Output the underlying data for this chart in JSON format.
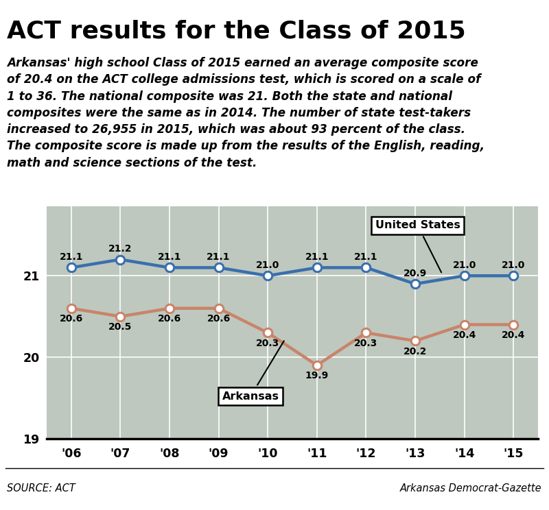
{
  "title": "ACT results for the Class of 2015",
  "subtitle": "Arkansas' high school Class of 2015 earned an average composite score\nof 20.4 on the ACT college admissions test, which is scored on a scale of\n1 to 36. The national composite was 21. Both the state and national\ncomposites were the same as in 2014. The number of state test-takers\nincreased to 26,955 in 2015, which was about 93 percent of the class.\nThe composite score is made up from the results of the English, reading,\nmath and science sections of the test.",
  "years": [
    "'06",
    "'07",
    "'08",
    "'09",
    "'10",
    "'11",
    "'12",
    "'13",
    "'14",
    "'15"
  ],
  "us_scores": [
    21.1,
    21.2,
    21.1,
    21.1,
    21.0,
    21.1,
    21.1,
    20.9,
    21.0,
    21.0
  ],
  "ar_scores": [
    20.6,
    20.5,
    20.6,
    20.6,
    20.3,
    19.9,
    20.3,
    20.2,
    20.4,
    20.4
  ],
  "us_color": "#3a6fad",
  "ar_color": "#c9846a",
  "plot_bg_color": "#bec8be",
  "ylim_min": 19.0,
  "ylim_max": 21.85,
  "yticks": [
    19,
    20,
    21
  ],
  "source_text": "SOURCE: ACT",
  "credit_text": "Arkansas Democrat-Gazette",
  "top_bar_color": "#1a1a1a",
  "us_annotation_text": "United States",
  "ar_annotation_text": "Arkansas"
}
